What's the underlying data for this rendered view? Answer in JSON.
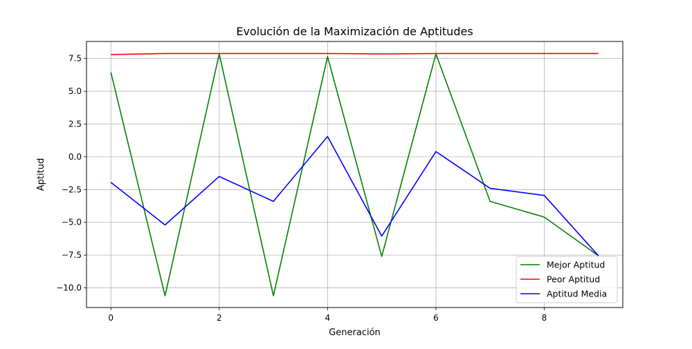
{
  "chart_data": {
    "type": "line",
    "title": "Evolución de la Maximización de Aptitudes",
    "xlabel": "Generación",
    "ylabel": "Aptitud",
    "x": [
      0,
      1,
      2,
      3,
      4,
      5,
      6,
      7,
      8,
      9
    ],
    "xlim": [
      -0.45,
      9.45
    ],
    "ylim": [
      -11.5,
      8.8
    ],
    "xticks": [
      0,
      2,
      4,
      6,
      8
    ],
    "xtick_labels": [
      "0",
      "2",
      "4",
      "6",
      "8"
    ],
    "yticks": [
      -10.0,
      -7.5,
      -5.0,
      -2.5,
      0.0,
      2.5,
      5.0,
      7.5
    ],
    "ytick_labels": [
      "−10.0",
      "−7.5",
      "−5.0",
      "−2.5",
      "0.0",
      "2.5",
      "5.0",
      "7.5"
    ],
    "grid": true,
    "legend_position": "bottom-right",
    "series": [
      {
        "name": "Mejor Aptitud",
        "color": "#008000",
        "values": [
          6.45,
          -10.6,
          7.85,
          -10.6,
          7.65,
          -7.6,
          7.85,
          -3.4,
          -4.6,
          -7.55
        ]
      },
      {
        "name": "Peor Aptitud",
        "color": "#ff0000",
        "values": [
          7.8,
          7.88,
          7.88,
          7.88,
          7.88,
          7.85,
          7.88,
          7.88,
          7.88,
          7.88
        ]
      },
      {
        "name": "Aptitud Media",
        "color": "#0000ff",
        "values": [
          -1.95,
          -5.2,
          -1.5,
          -3.4,
          1.55,
          -6.05,
          0.4,
          -2.4,
          -2.95,
          -7.55
        ]
      }
    ]
  }
}
